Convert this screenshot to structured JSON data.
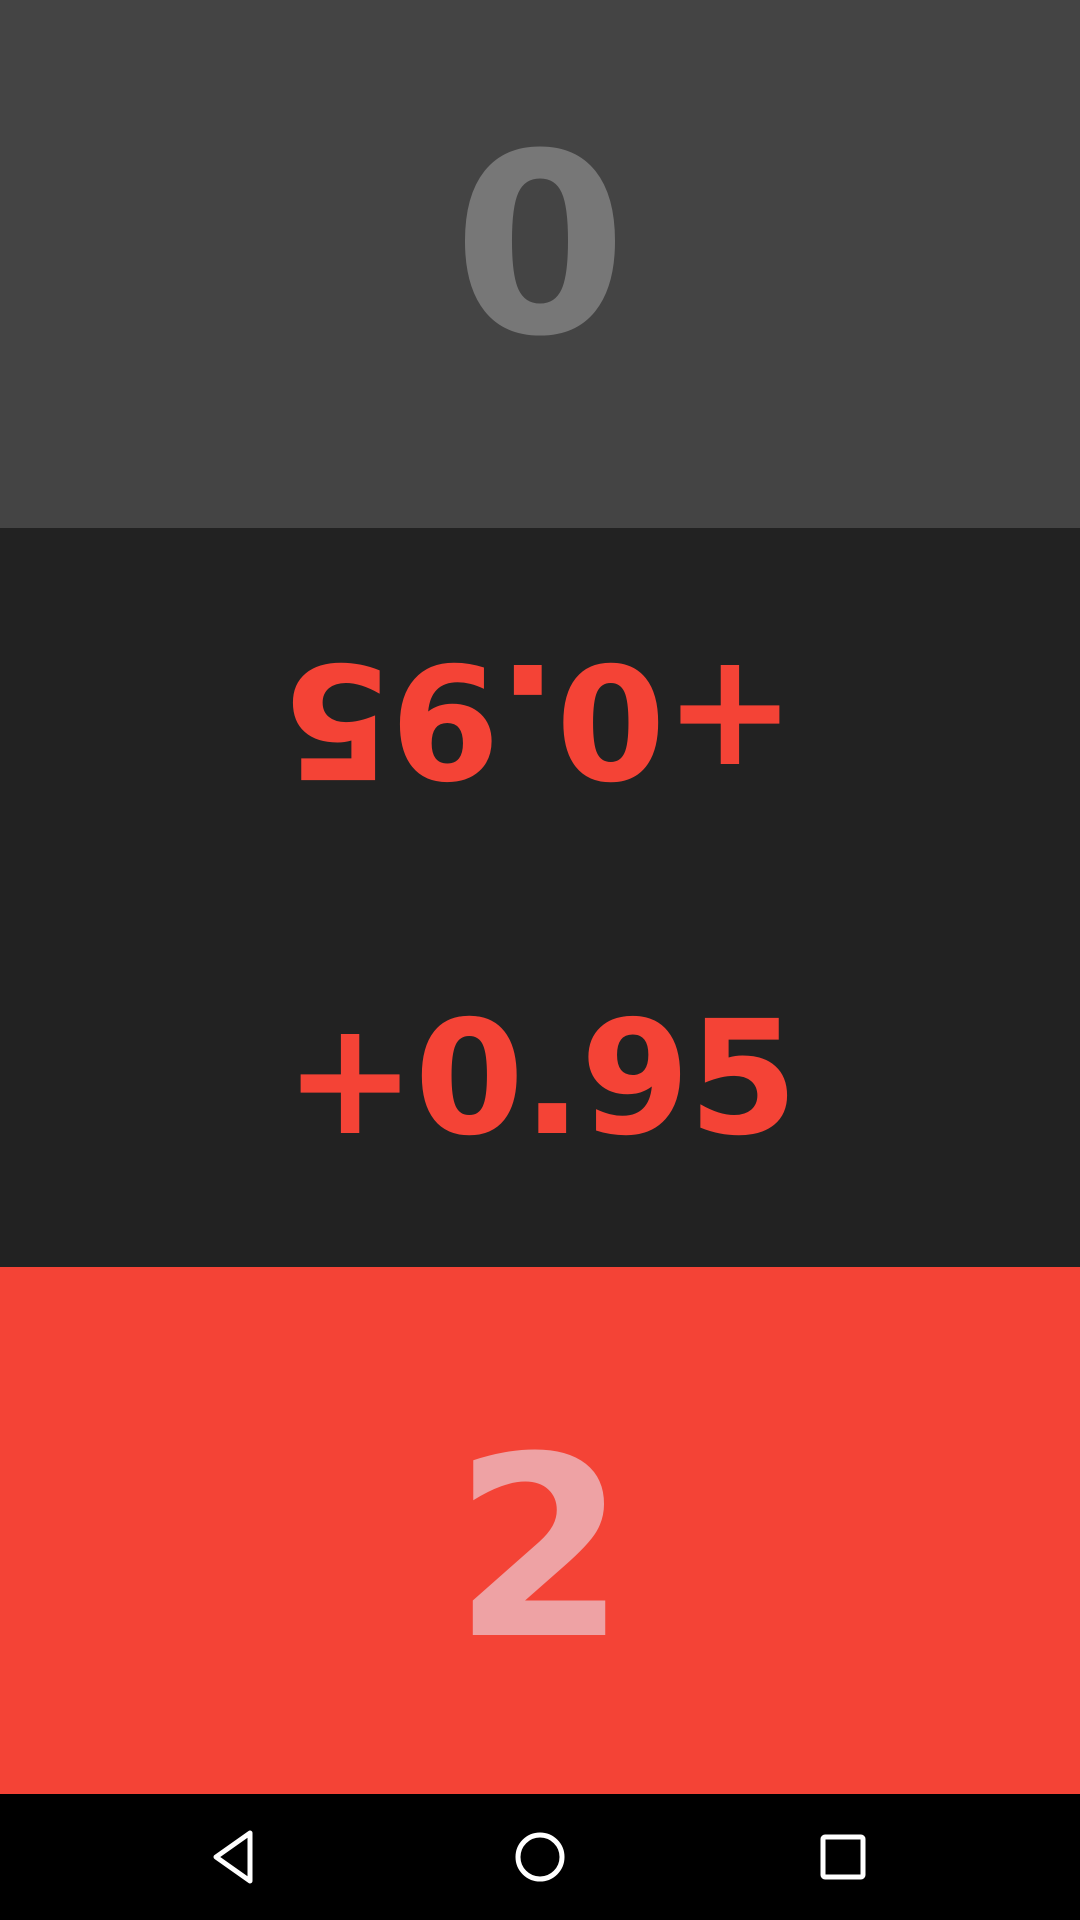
{
  "players": {
    "top": {
      "score": "0",
      "panel_color": "#444444",
      "score_color": "#777777"
    },
    "bottom": {
      "score": "2",
      "panel_color": "#F44336",
      "score_color": "#EEA2A4"
    }
  },
  "difference": {
    "top_text": "+0.95",
    "bottom_text": "+0.95",
    "color": "#F44336",
    "panel_color": "#222222"
  },
  "navbar": {
    "back_icon": "back-triangle-icon",
    "home_icon": "home-circle-icon",
    "recent_icon": "recent-apps-square-icon"
  }
}
